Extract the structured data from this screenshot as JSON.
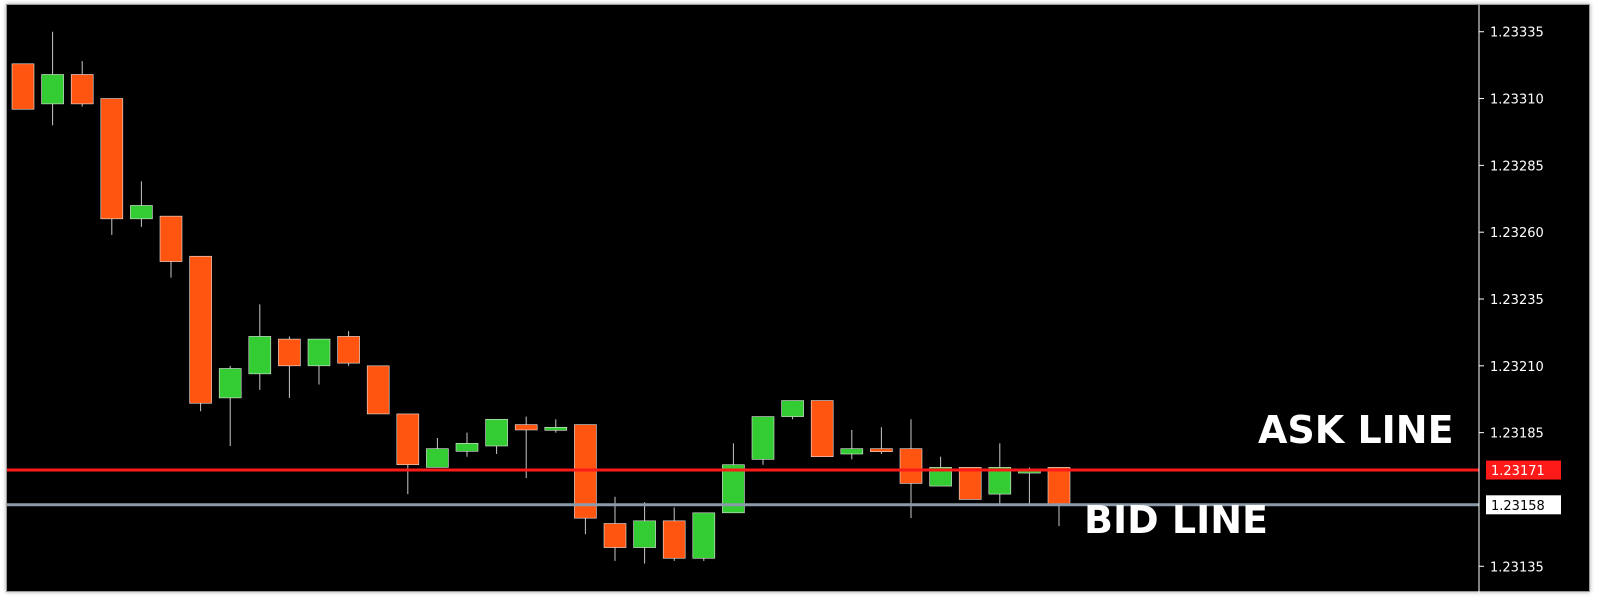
{
  "chart_data": {
    "type": "candlestick",
    "title": "",
    "xlabel": "",
    "ylabel": "",
    "ylim": [
      1.23125,
      1.23345
    ],
    "y_ticks": [
      "1.23335",
      "1.23310",
      "1.23285",
      "1.23260",
      "1.23235",
      "1.23210",
      "1.23185",
      "1.23135"
    ],
    "grid": false,
    "colors": {
      "background": "#000000",
      "bull": "#33cc33",
      "bear": "#ff5511",
      "wick": "#c8c8c8",
      "ask": "#ff1a1a",
      "bid": "#8a9aa8"
    },
    "ask_line": {
      "value": 1.23171,
      "label": "1.23171",
      "annotation": "ASK LINE"
    },
    "bid_line": {
      "value": 1.23158,
      "label": "1.23158",
      "annotation": "BID LINE"
    },
    "candles": [
      {
        "o": 1.23323,
        "h": 1.23323,
        "l": 1.23306,
        "c": 1.23306
      },
      {
        "o": 1.23308,
        "h": 1.23335,
        "l": 1.233,
        "c": 1.23319
      },
      {
        "o": 1.23319,
        "h": 1.23324,
        "l": 1.23307,
        "c": 1.23308
      },
      {
        "o": 1.2331,
        "h": 1.2331,
        "l": 1.23259,
        "c": 1.23265
      },
      {
        "o": 1.23265,
        "h": 1.23279,
        "l": 1.23262,
        "c": 1.2327
      },
      {
        "o": 1.23266,
        "h": 1.23266,
        "l": 1.23243,
        "c": 1.23249
      },
      {
        "o": 1.23251,
        "h": 1.23251,
        "l": 1.23193,
        "c": 1.23196
      },
      {
        "o": 1.23198,
        "h": 1.2321,
        "l": 1.2318,
        "c": 1.23209
      },
      {
        "o": 1.23207,
        "h": 1.23233,
        "l": 1.23201,
        "c": 1.23221
      },
      {
        "o": 1.2322,
        "h": 1.23221,
        "l": 1.23198,
        "c": 1.2321
      },
      {
        "o": 1.2321,
        "h": 1.2322,
        "l": 1.23203,
        "c": 1.2322
      },
      {
        "o": 1.23221,
        "h": 1.23223,
        "l": 1.2321,
        "c": 1.23211
      },
      {
        "o": 1.2321,
        "h": 1.2321,
        "l": 1.23192,
        "c": 1.23192
      },
      {
        "o": 1.23192,
        "h": 1.23192,
        "l": 1.23162,
        "c": 1.23173
      },
      {
        "o": 1.23172,
        "h": 1.23183,
        "l": 1.23172,
        "c": 1.23179
      },
      {
        "o": 1.23178,
        "h": 1.23185,
        "l": 1.23176,
        "c": 1.23181
      },
      {
        "o": 1.2318,
        "h": 1.2319,
        "l": 1.23177,
        "c": 1.2319
      },
      {
        "o": 1.23188,
        "h": 1.23191,
        "l": 1.23168,
        "c": 1.23186
      },
      {
        "o": 1.23186,
        "h": 1.2319,
        "l": 1.23185,
        "c": 1.23187
      },
      {
        "o": 1.23188,
        "h": 1.23188,
        "l": 1.23147,
        "c": 1.23153
      },
      {
        "o": 1.23151,
        "h": 1.23161,
        "l": 1.23137,
        "c": 1.23142
      },
      {
        "o": 1.23142,
        "h": 1.23159,
        "l": 1.23136,
        "c": 1.23152
      },
      {
        "o": 1.23152,
        "h": 1.23157,
        "l": 1.23137,
        "c": 1.23138
      },
      {
        "o": 1.23138,
        "h": 1.23155,
        "l": 1.23137,
        "c": 1.23155
      },
      {
        "o": 1.23155,
        "h": 1.23181,
        "l": 1.23155,
        "c": 1.23173
      },
      {
        "o": 1.23175,
        "h": 1.23191,
        "l": 1.23173,
        "c": 1.23191
      },
      {
        "o": 1.23191,
        "h": 1.23197,
        "l": 1.2319,
        "c": 1.23197
      },
      {
        "o": 1.23197,
        "h": 1.23197,
        "l": 1.23176,
        "c": 1.23176
      },
      {
        "o": 1.23177,
        "h": 1.23186,
        "l": 1.23175,
        "c": 1.23179
      },
      {
        "o": 1.23179,
        "h": 1.23187,
        "l": 1.23177,
        "c": 1.23178
      },
      {
        "o": 1.23179,
        "h": 1.2319,
        "l": 1.23153,
        "c": 1.23166
      },
      {
        "o": 1.23165,
        "h": 1.23176,
        "l": 1.23165,
        "c": 1.23172
      },
      {
        "o": 1.23172,
        "h": 1.23172,
        "l": 1.2316,
        "c": 1.2316
      },
      {
        "o": 1.23162,
        "h": 1.23181,
        "l": 1.23158,
        "c": 1.23172
      },
      {
        "o": 1.23171,
        "h": 1.23172,
        "l": 1.23158,
        "c": 1.23171
      },
      {
        "o": 1.23172,
        "h": 1.23172,
        "l": 1.2315,
        "c": 1.23158
      }
    ]
  }
}
